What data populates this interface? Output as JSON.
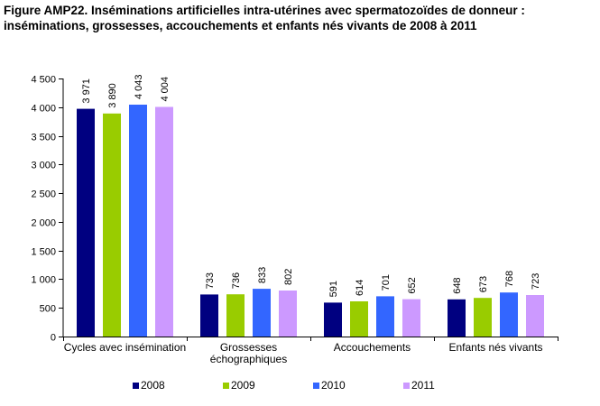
{
  "chart_data": {
    "type": "bar",
    "title": [
      "Figure AMP22. Inséminations artificielles intra-utérines avec spermatozoïdes de donneur :",
      "inséminations, grossesses, accouchements et enfants nés vivants de 2008 à 2011"
    ],
    "categories": [
      [
        "Cycles avec insémination"
      ],
      [
        "Grossesses",
        "échographiques"
      ],
      [
        "Accouchements"
      ],
      [
        "Enfants nés vivants"
      ]
    ],
    "series": [
      {
        "name": "2008",
        "color": "#000080",
        "values": [
          3971,
          733,
          591,
          648
        ]
      },
      {
        "name": "2009",
        "color": "#99CC00",
        "values": [
          3890,
          736,
          614,
          673
        ]
      },
      {
        "name": "2010",
        "color": "#3366FF",
        "values": [
          4043,
          833,
          701,
          768
        ]
      },
      {
        "name": "2011",
        "color": "#CC99FF",
        "values": [
          4004,
          802,
          652,
          723
        ]
      }
    ],
    "data_labels": [
      [
        "3 971",
        "733",
        "591",
        "648"
      ],
      [
        "3 890",
        "736",
        "614",
        "673"
      ],
      [
        "4 043",
        "833",
        "701",
        "768"
      ],
      [
        "4 004",
        "802",
        "652",
        "723"
      ]
    ],
    "y_ticks": [
      {
        "value": 0,
        "label": "0"
      },
      {
        "value": 500,
        "label": "500"
      },
      {
        "value": 1000,
        "label": "1 000"
      },
      {
        "value": 1500,
        "label": "1 500"
      },
      {
        "value": 2000,
        "label": "2 000"
      },
      {
        "value": 2500,
        "label": "2 500"
      },
      {
        "value": 3000,
        "label": "3 000"
      },
      {
        "value": 3500,
        "label": "3 500"
      },
      {
        "value": 4000,
        "label": "4 000"
      },
      {
        "value": 4500,
        "label": "4 500"
      }
    ],
    "ylim": [
      0,
      4500
    ],
    "xlabel": "",
    "ylabel": "",
    "grid": false,
    "legend": "bottom",
    "data_label_orientation": "vertical"
  }
}
